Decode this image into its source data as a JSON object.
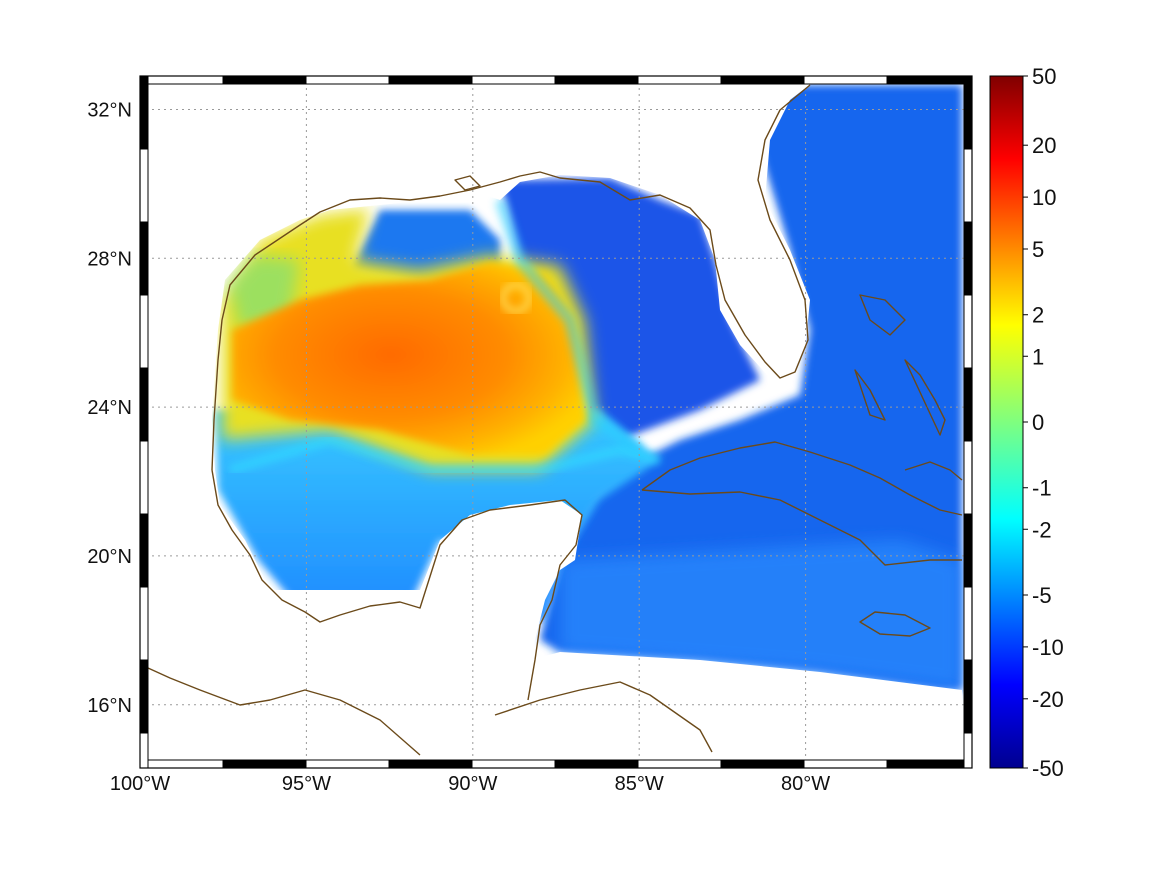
{
  "map": {
    "lon_range": [
      -100,
      -85.0,
      -75
    ],
    "lon_extent": [
      -100,
      -75
    ],
    "lat_extent": [
      14.3,
      32.9
    ],
    "lat_ticks": [
      {
        "value": 16,
        "label": "16°N"
      },
      {
        "value": 20,
        "label": "20°N"
      },
      {
        "value": 24,
        "label": "24°N"
      },
      {
        "value": 28,
        "label": "28°N"
      },
      {
        "value": 32,
        "label": "32°N"
      }
    ],
    "lon_ticks": [
      {
        "value": -100,
        "label": "100°W"
      },
      {
        "value": -95,
        "label": "95°W"
      },
      {
        "value": -90,
        "label": "90°W"
      },
      {
        "value": -85,
        "label": "85°W"
      },
      {
        "value": -80,
        "label": "80°W"
      }
    ],
    "grid": "dotted",
    "frame": "black-white checkered",
    "coastline_color": "#6b4a1a",
    "land_color": "#ffffff"
  },
  "colorbar": {
    "colormap": "jet",
    "tick_labels": [
      "50",
      "20",
      "10",
      "5",
      "2",
      "1",
      "0",
      "-1",
      "-2",
      "-5",
      "-10",
      "-20",
      "-50"
    ]
  }
}
